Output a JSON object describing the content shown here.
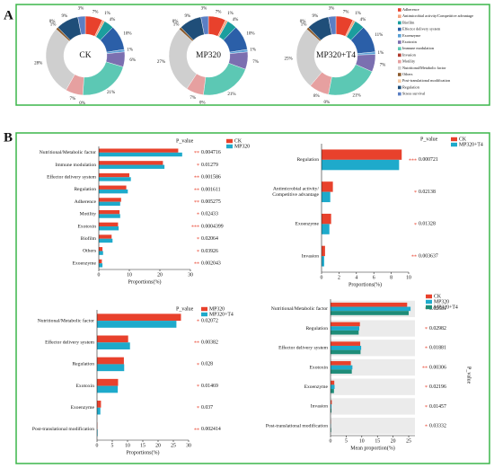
{
  "panels": [
    "A",
    "B"
  ],
  "chart_data": [
    {
      "type": "donut",
      "title": "CK",
      "categories": [
        "Adherence",
        "Antimicrobial activity/Competitive advantage",
        "Biofilm",
        "Effector delivery system",
        "Exoenzyme",
        "Exotoxin",
        "Immune modulation",
        "Invasion",
        "Motility",
        "Nutritional/Metabolic factor",
        "Others",
        "Post-translational modification",
        "Regulation",
        "Stress survival"
      ],
      "colors": [
        "#e8412c",
        "#f4a582",
        "#1b9e9e",
        "#2b5fa8",
        "#5aa0d6",
        "#7b6fb0",
        "#5cc8b4",
        "#b03a2e",
        "#e6a0a0",
        "#cfcfcf",
        "#8b5a2b",
        "#f5cba7",
        "#1f4e79",
        "#5b7fc4"
      ],
      "values": [
        7,
        1,
        4,
        10,
        1,
        6,
        21,
        0,
        7,
        28,
        1,
        0,
        9,
        3
      ],
      "value_labels": [
        "7%",
        "1%",
        "4%",
        "10%",
        "1%",
        "6%",
        "21%",
        "0%",
        "7%",
        "28%",
        "1%",
        "0%",
        "9%",
        "3%"
      ]
    },
    {
      "type": "donut",
      "title": "MP320",
      "categories": [
        "Adherence",
        "Antimicrobial activity/Competitive advantage",
        "Biofilm",
        "Effector delivery system",
        "Exoenzyme",
        "Exotoxin",
        "Immune modulation",
        "Invasion",
        "Motility",
        "Nutritional/Metabolic factor",
        "Others",
        "Post-translational modification",
        "Regulation",
        "Stress survival"
      ],
      "colors": [
        "#e8412c",
        "#f4a582",
        "#1b9e9e",
        "#2b5fa8",
        "#5aa0d6",
        "#7b6fb0",
        "#5cc8b4",
        "#b03a2e",
        "#e6a0a0",
        "#cfcfcf",
        "#8b5a2b",
        "#f5cba7",
        "#1f4e79",
        "#5b7fc4"
      ],
      "values": [
        7,
        1,
        4,
        10,
        1,
        7,
        21,
        0,
        7,
        27,
        1,
        0,
        9,
        3
      ],
      "value_labels": [
        "7%",
        "1%",
        "4%",
        "10%",
        "1%",
        "7%",
        "21%",
        "0%",
        "7%",
        "27%",
        "1%",
        "0%",
        "9%",
        "3%"
      ]
    },
    {
      "type": "donut",
      "title": "MP320+T4",
      "categories": [
        "Adherence",
        "Antimicrobial activity/Competitive advantage",
        "Biofilm",
        "Effector delivery system",
        "Exoenzyme",
        "Exotoxin",
        "Immune modulation",
        "Invasion",
        "Motility",
        "Nutritional/Metabolic factor",
        "Others",
        "Post-translational modification",
        "Regulation",
        "Stress survival"
      ],
      "colors": [
        "#e8412c",
        "#f4a582",
        "#1b9e9e",
        "#2b5fa8",
        "#5aa0d6",
        "#7b6fb0",
        "#5cc8b4",
        "#b03a2e",
        "#e6a0a0",
        "#cfcfcf",
        "#8b5a2b",
        "#f5cba7",
        "#1f4e79",
        "#5b7fc4"
      ],
      "values": [
        7,
        1,
        4,
        11,
        1,
        7,
        21,
        0,
        8,
        25,
        1,
        0,
        9,
        3
      ],
      "value_labels": [
        "7%",
        "1%",
        "4%",
        "11%",
        "1%",
        "7%",
        "21%",
        "0%",
        "8%",
        "25%",
        "1%",
        "0%",
        "9%",
        "3%"
      ]
    },
    {
      "type": "bar",
      "orientation": "horizontal",
      "categories": [
        "Nutritional/Metabolic factor",
        "Immune modulation",
        "Effector delivery system",
        "Regulation",
        "Adherence",
        "Motility",
        "Exotoxin",
        "Biofilm",
        "Others",
        "Exoenzyme"
      ],
      "series": [
        {
          "name": "CK",
          "color": "#e8412c",
          "values": [
            26,
            21,
            10,
            9,
            7.3,
            6.8,
            6.3,
            4.2,
            1.2,
            1.0
          ]
        },
        {
          "name": "MP320",
          "color": "#1eaacb",
          "values": [
            27.3,
            21.5,
            10.5,
            9.5,
            7,
            7,
            6.5,
            4.5,
            1.4,
            1.2
          ]
        }
      ],
      "p_label": "P_value",
      "significance": [
        "**",
        "*",
        "**",
        "**",
        "**",
        "*",
        "***",
        "*",
        "*",
        "**"
      ],
      "p_values": [
        0.004716,
        0.01279,
        0.001586,
        0.001611,
        0.005275,
        0.02433,
        0.0004399,
        0.02064,
        0.03926,
        0.002043
      ],
      "xlabel": "Proportions(%)",
      "xlim": [
        0,
        30
      ],
      "xticks": [
        0,
        10,
        20,
        30
      ],
      "shading": false
    },
    {
      "type": "bar",
      "orientation": "horizontal",
      "categories": [
        "Regulation",
        "Antimicrobial activity/Competitive advantage",
        "Exoenzyme",
        "Invasion"
      ],
      "series": [
        {
          "name": "CK",
          "color": "#e8412c",
          "values": [
            9.2,
            1.3,
            1.1,
            0.4
          ]
        },
        {
          "name": "MP320+T4",
          "color": "#1eaacb",
          "values": [
            8.9,
            1.0,
            0.9,
            0.3
          ]
        }
      ],
      "p_label": "P_value",
      "significance": [
        "***",
        "*",
        "*",
        "**"
      ],
      "p_values": [
        0.000721,
        0.02138,
        0.01328,
        0.003637
      ],
      "xlabel": "Proportions(%)",
      "xlim": [
        0,
        10
      ],
      "xticks": [
        0,
        2,
        4,
        6,
        8,
        10
      ],
      "shading": false
    },
    {
      "type": "bar",
      "orientation": "horizontal",
      "categories": [
        "Nutritional/Metabolic factor",
        "Effector delivery system",
        "Regulation",
        "Exotoxin",
        "Exoenzyme",
        "Post-translational modification"
      ],
      "series": [
        {
          "name": "MP320",
          "color": "#e8412c",
          "values": [
            27.5,
            10.2,
            8.8,
            6.9,
            1.3,
            0.1
          ]
        },
        {
          "name": "MP320+T4",
          "color": "#1eaacb",
          "values": [
            26,
            10.8,
            8.9,
            6.8,
            1.1,
            0.2
          ]
        }
      ],
      "p_label": "P_value",
      "significance": [
        "*",
        "**",
        "*",
        "*",
        "*",
        "**"
      ],
      "p_values": [
        0.02072,
        0.00382,
        0.028,
        0.01469,
        0.037,
        0.002414
      ],
      "xlabel": "Proportions(%)",
      "xlim": [
        0,
        30
      ],
      "xticks": [
        0,
        5,
        10,
        15,
        20,
        25,
        30
      ],
      "shading": false
    },
    {
      "type": "bar",
      "orientation": "horizontal",
      "categories": [
        "Nutritional/Metabolic factor",
        "Regulation",
        "Effector delivery system",
        "Exotoxin",
        "Exoenzyme",
        "Invasion",
        "Post-translational modification"
      ],
      "series": [
        {
          "name": "CK",
          "color": "#e8412c",
          "values": [
            24.5,
            9.4,
            9.5,
            6.5,
            1.2,
            0.4,
            0.1
          ]
        },
        {
          "name": "MP320",
          "color": "#1eaacb",
          "values": [
            25.6,
            9.2,
            9.8,
            7,
            1.3,
            0.3,
            0.1
          ]
        },
        {
          "name": "MP320+T4",
          "color": "#1e8c78",
          "values": [
            25,
            9.0,
            9.6,
            6.8,
            1.1,
            0.3,
            0.2
          ]
        }
      ],
      "p_label": "P_value",
      "significance": [
        "*",
        "*",
        "*",
        "**",
        "*",
        "*",
        "*"
      ],
      "p_values": [
        0.02681,
        0.02982,
        0.01881,
        0.00306,
        0.02196,
        0.01457,
        0.03332
      ],
      "xlabel": "Mean proportion(%)",
      "xlim": [
        0,
        27
      ],
      "xticks": [
        0,
        5,
        10,
        15,
        20,
        25
      ],
      "shading": true
    }
  ]
}
